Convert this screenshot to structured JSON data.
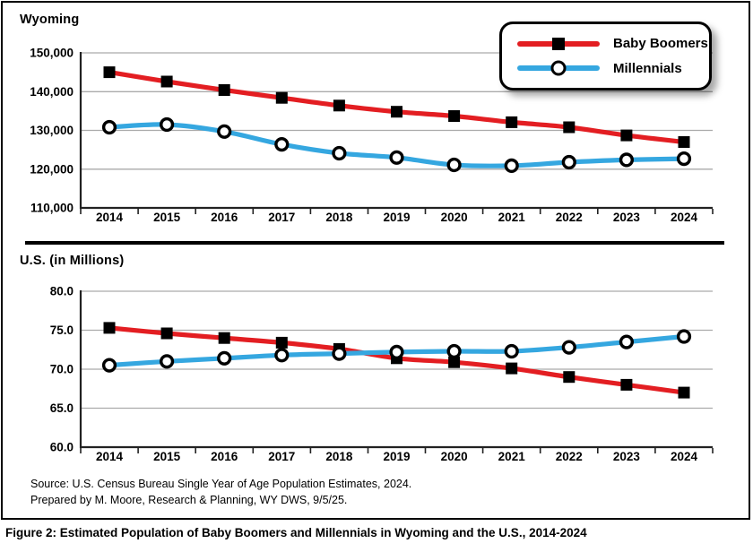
{
  "figure": {
    "caption": "Figure 2: Estimated Population of Baby Boomers and Millennials in Wyoming and the U.S., 2014-2024",
    "source": {
      "line1": "Source: U.S. Census Bureau Single Year of Age Population Estimates, 2024.",
      "line2": "Prepared by M. Moore, Research & Planning, WY DWS, 9/5/25."
    }
  },
  "legend": {
    "position": "top-right-overlay-on-wyoming-chart",
    "items": [
      {
        "label": "Baby Boomers",
        "color": "#e31e22",
        "marker": "filled-square"
      },
      {
        "label": "Millennials",
        "color": "#35a7e0",
        "marker": "open-circle"
      }
    ]
  },
  "colors": {
    "baby_boomers_line": "#e31e22",
    "millennials_line": "#35a7e0",
    "marker": "#000000",
    "grid": "#aaaaaa",
    "axis": "#222222",
    "border": "#000000",
    "background": "#ffffff"
  },
  "chart_data": [
    {
      "type": "line",
      "title": "Wyoming",
      "x": [
        "2014",
        "2015",
        "2016",
        "2017",
        "2018",
        "2019",
        "2020",
        "2021",
        "2022",
        "2023",
        "2024"
      ],
      "series": [
        {
          "name": "Baby Boomers",
          "color": "#e31e22",
          "marker": "filled-square",
          "values": [
            145000,
            142600,
            140400,
            138400,
            136400,
            134800,
            133700,
            132100,
            130800,
            128700,
            127000
          ]
        },
        {
          "name": "Millennials",
          "color": "#35a7e0",
          "marker": "open-circle",
          "values": [
            130800,
            131500,
            129700,
            126400,
            124100,
            123000,
            121100,
            120900,
            121800,
            122400,
            122700
          ]
        }
      ],
      "ylim": [
        110000,
        150000
      ],
      "ytick_step": 10000,
      "ytick_labels": [
        "110,000",
        "120,000",
        "130,000",
        "140,000",
        "150,000"
      ],
      "grid": true,
      "legend_position": "top-right"
    },
    {
      "type": "line",
      "title": "U.S. (in Millions)",
      "x": [
        "2014",
        "2015",
        "2016",
        "2017",
        "2018",
        "2019",
        "2020",
        "2021",
        "2022",
        "2023",
        "2024"
      ],
      "series": [
        {
          "name": "Baby Boomers",
          "color": "#e31e22",
          "marker": "filled-square",
          "values": [
            75.3,
            74.6,
            74.0,
            73.4,
            72.6,
            71.4,
            70.9,
            70.1,
            69.0,
            68.0,
            67.0
          ]
        },
        {
          "name": "Millennials",
          "color": "#35a7e0",
          "marker": "open-circle",
          "values": [
            70.5,
            71.0,
            71.4,
            71.8,
            72.0,
            72.2,
            72.3,
            72.3,
            72.8,
            73.5,
            74.2
          ]
        }
      ],
      "ylim": [
        60,
        80
      ],
      "ytick_step": 5,
      "ytick_labels": [
        "60.0",
        "65.0",
        "70.0",
        "75.0",
        "80.0"
      ],
      "grid": true,
      "legend_position": "none"
    }
  ]
}
